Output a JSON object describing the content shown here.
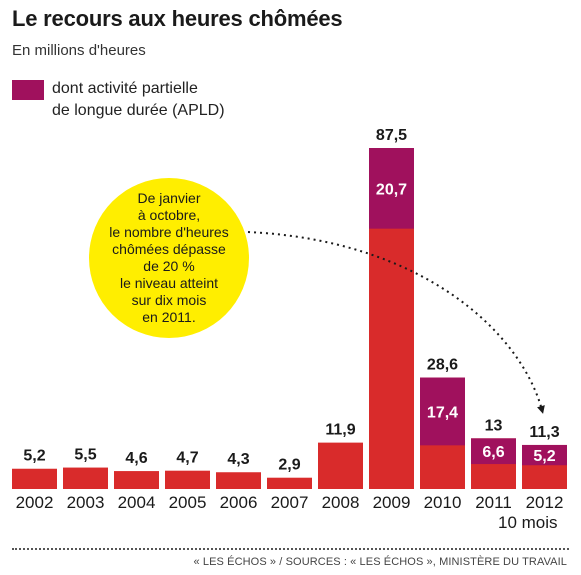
{
  "header": {
    "title": "Le recours aux heures chômées",
    "subtitle": "En millions d'heures"
  },
  "legend": {
    "apld_label": "dont activité partielle\nde longue durée (APLD)"
  },
  "callout": {
    "text": "De janvier\nà octobre,\nle nombre d'heures\nchômées dépasse\nde 20 %\nle niveau atteint\nsur dix mois\nen 2011."
  },
  "footer": {
    "last_year_note": "10 mois",
    "source": "« LES ÉCHOS » / SOURCES : « LES ÉCHOS », MINISTÈRE DU TRAVAIL"
  },
  "colors": {
    "total": "#d92b2b",
    "apld": "#a0115d",
    "callout": "#ffee00"
  },
  "chart_data": {
    "type": "bar",
    "stacked": true,
    "categories": [
      "2002",
      "2003",
      "2004",
      "2005",
      "2006",
      "2007",
      "2008",
      "2009",
      "2010",
      "2011",
      "2012"
    ],
    "totals": [
      5.2,
      5.5,
      4.6,
      4.7,
      4.3,
      2.9,
      11.9,
      87.5,
      28.6,
      13,
      11.3
    ],
    "total_labels": [
      "5,2",
      "5,5",
      "4,6",
      "4,7",
      "4,3",
      "2,9",
      "11,9",
      "87,5",
      "28,6",
      "13",
      "11,3"
    ],
    "series": [
      {
        "name": "dont activité partielle de longue durée (APLD)",
        "values": [
          0,
          0,
          0,
          0,
          0,
          0,
          0,
          20.7,
          17.4,
          6.6,
          5.2
        ]
      }
    ],
    "apld_labels": [
      "",
      "",
      "",
      "",
      "",
      "",
      "",
      "20,7",
      "17,4",
      "6,6",
      "5,2"
    ],
    "title": "Le recours aux heures chômées",
    "ylabel": "En millions d'heures",
    "ylim": [
      0,
      87.5
    ],
    "grid": false,
    "legend_position": "top-left"
  }
}
